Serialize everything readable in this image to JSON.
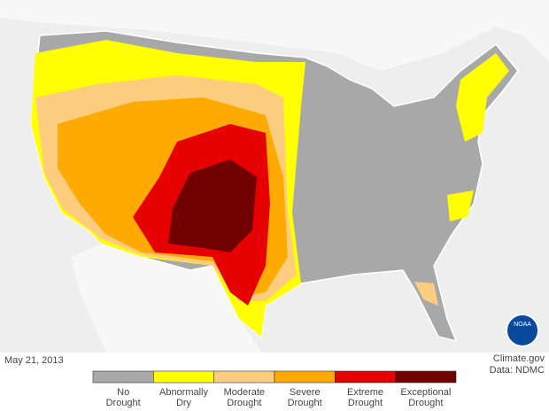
{
  "date": "May 21, 2013",
  "credit": {
    "source": "Climate.gov",
    "data": "Data: NDMC"
  },
  "logo": "NOAA",
  "legend": [
    {
      "label": [
        "No",
        "Drought"
      ],
      "color": "#a8a8a8"
    },
    {
      "label": [
        "Abnormally",
        "Dry"
      ],
      "color": "#ffff00"
    },
    {
      "label": [
        "Moderate",
        "Drought"
      ],
      "color": "#fccd7e"
    },
    {
      "label": [
        "Severe",
        "Drought"
      ],
      "color": "#ffaa00"
    },
    {
      "label": [
        "Extreme",
        "Drought"
      ],
      "color": "#e60000"
    },
    {
      "label": [
        "Exceptional",
        "Drought"
      ],
      "color": "#730000"
    }
  ]
}
